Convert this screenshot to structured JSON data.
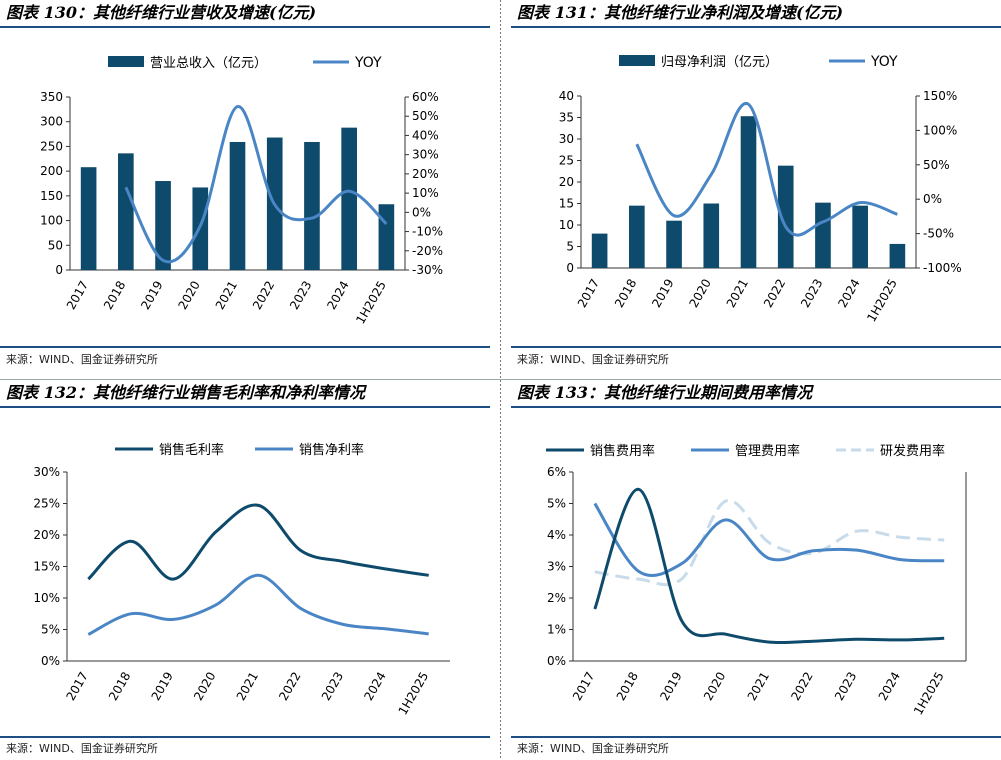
{
  "colors": {
    "dark": "#0d4a6b",
    "mid": "#4a86c5",
    "light": "#c8dbea",
    "rule": "#1e4f82"
  },
  "chart_data": [
    {
      "type": "bar+line",
      "title": "图表 130：其他纤维行业营收及增速(亿元)",
      "source": "来源：WIND、国金证券研究所",
      "categories": [
        "2017",
        "2018",
        "2019",
        "2020",
        "2021",
        "2022",
        "2023",
        "2024",
        "1H2025"
      ],
      "legend": [
        "营业总收入（亿元）",
        "YOY"
      ],
      "series": [
        {
          "name": "营业总收入（亿元）",
          "kind": "bar",
          "axis": "left",
          "values": [
            208,
            236,
            180,
            167,
            259,
            268,
            259,
            288,
            133
          ]
        },
        {
          "name": "YOY",
          "kind": "line",
          "axis": "right",
          "values": [
            null,
            0.13,
            -0.25,
            -0.07,
            0.55,
            0.04,
            -0.03,
            0.11,
            -0.06
          ]
        }
      ],
      "ylim_left": [
        0,
        350
      ],
      "ystep_left": 50,
      "yticks_left": [
        "0",
        "50",
        "100",
        "150",
        "200",
        "250",
        "300",
        "350"
      ],
      "ylim_right": [
        -0.3,
        0.6
      ],
      "ystep_right": 0.1,
      "yticks_right": [
        "-30%",
        "-20%",
        "-10%",
        "0%",
        "10%",
        "20%",
        "30%",
        "40%",
        "50%",
        "60%"
      ]
    },
    {
      "type": "bar+line",
      "title": "图表 131：其他纤维行业净利润及增速(亿元)",
      "source": "来源：WIND、国金证券研究所",
      "categories": [
        "2017",
        "2018",
        "2019",
        "2020",
        "2021",
        "2022",
        "2023",
        "2024",
        "1H2025"
      ],
      "legend": [
        "归母净利润（亿元）",
        "YOY"
      ],
      "series": [
        {
          "name": "归母净利润（亿元）",
          "kind": "bar",
          "axis": "left",
          "values": [
            8.0,
            14.5,
            11.0,
            15.0,
            35.3,
            23.8,
            15.2,
            14.5,
            5.6
          ]
        },
        {
          "name": "YOY",
          "kind": "line",
          "axis": "right",
          "values": [
            null,
            0.8,
            -0.24,
            0.36,
            1.38,
            -0.4,
            -0.33,
            -0.05,
            -0.22
          ]
        }
      ],
      "ylim_left": [
        0,
        40
      ],
      "ystep_left": 5,
      "yticks_left": [
        "0",
        "5",
        "10",
        "15",
        "20",
        "25",
        "30",
        "35",
        "40"
      ],
      "ylim_right": [
        -1.0,
        1.5
      ],
      "ystep_right": 0.5,
      "yticks_right": [
        "-100%",
        "-50%",
        "0%",
        "50%",
        "100%",
        "150%"
      ]
    },
    {
      "type": "line",
      "title": "图表 132：其他纤维行业销售毛利率和净利率情况",
      "source": "来源：WIND、国金证券研究所",
      "categories": [
        "2017",
        "2018",
        "2019",
        "2020",
        "2021",
        "2022",
        "2023",
        "2024",
        "1H2025"
      ],
      "legend": [
        "销售毛利率",
        "销售净利率"
      ],
      "series": [
        {
          "name": "销售毛利率",
          "style": "dark",
          "values": [
            0.13,
            0.19,
            0.13,
            0.205,
            0.247,
            0.175,
            0.158,
            0.146,
            0.136
          ]
        },
        {
          "name": "销售净利率",
          "style": "mid",
          "values": [
            0.042,
            0.075,
            0.066,
            0.089,
            0.136,
            0.083,
            0.058,
            0.051,
            0.043
          ]
        }
      ],
      "ylim": [
        0,
        0.3
      ],
      "ystep": 0.05,
      "yticks": [
        "0%",
        "5%",
        "10%",
        "15%",
        "20%",
        "25%",
        "30%"
      ]
    },
    {
      "type": "line",
      "title": "图表 133：其他纤维行业期间费用率情况",
      "source": "来源：WIND、国金证券研究所",
      "categories": [
        "2017",
        "2018",
        "2019",
        "2020",
        "2021",
        "2022",
        "2023",
        "2024",
        "1H2025"
      ],
      "legend": [
        "销售费用率",
        "管理费用率",
        "研发费用率"
      ],
      "series": [
        {
          "name": "销售费用率",
          "style": "dark",
          "values": [
            0.0165,
            0.0545,
            0.0125,
            0.0085,
            0.006,
            0.0063,
            0.0069,
            0.0067,
            0.0072
          ]
        },
        {
          "name": "管理费用率",
          "style": "mid",
          "values": [
            0.05,
            0.0285,
            0.031,
            0.0448,
            0.0325,
            0.035,
            0.0352,
            0.0322,
            0.0318
          ]
        },
        {
          "name": "研发费用率",
          "style": "light",
          "values": [
            0.0283,
            0.026,
            0.0262,
            0.0508,
            0.0375,
            0.0342,
            0.0412,
            0.0393,
            0.0384
          ]
        }
      ],
      "ylim": [
        0,
        0.06
      ],
      "ystep": 0.01,
      "yticks": [
        "0%",
        "1%",
        "2%",
        "3%",
        "4%",
        "5%",
        "6%"
      ]
    }
  ]
}
